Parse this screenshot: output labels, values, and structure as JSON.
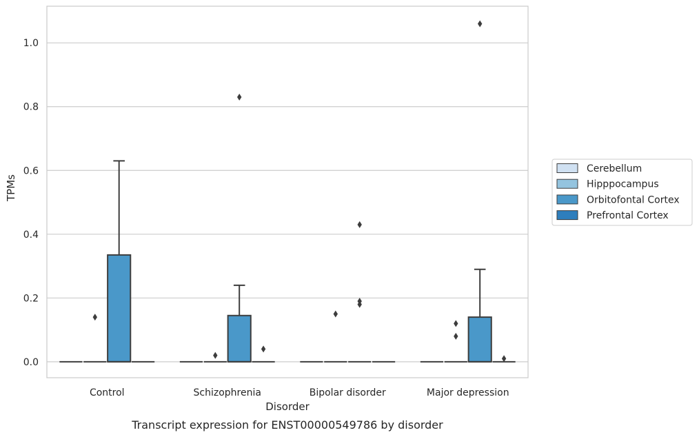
{
  "chart_data": {
    "type": "box",
    "title": "",
    "caption": "Transcript expression for ENST00000549786 by disorder",
    "xlabel": "Disorder",
    "ylabel": "TPMs",
    "ylim": [
      -0.05,
      1.115
    ],
    "yticks": [
      0.0,
      0.2,
      0.4,
      0.6,
      0.8,
      1.0
    ],
    "ytick_labels": [
      "0.0",
      "0.2",
      "0.4",
      "0.6",
      "0.8",
      "1.0"
    ],
    "grid": "horizontal",
    "legend_position": "right",
    "categories": [
      "Control",
      "Schizophrenia",
      "Bipolar disorder",
      "Major depression"
    ],
    "series": [
      {
        "name": "Cerebellum",
        "color": "#d0e1f2",
        "boxes": [
          {
            "q1": 0,
            "median": 0,
            "q3": 0,
            "whisker_low": 0,
            "whisker_high": 0,
            "outliers": []
          },
          {
            "q1": 0,
            "median": 0,
            "q3": 0,
            "whisker_low": 0,
            "whisker_high": 0,
            "outliers": []
          },
          {
            "q1": 0,
            "median": 0,
            "q3": 0,
            "whisker_low": 0,
            "whisker_high": 0,
            "outliers": []
          },
          {
            "q1": 0,
            "median": 0,
            "q3": 0,
            "whisker_low": 0,
            "whisker_high": 0,
            "outliers": []
          }
        ]
      },
      {
        "name": "Hipppocampus",
        "color": "#94c4df",
        "boxes": [
          {
            "q1": 0,
            "median": 0,
            "q3": 0,
            "whisker_low": 0,
            "whisker_high": 0,
            "outliers": [
              0.14
            ]
          },
          {
            "q1": 0,
            "median": 0,
            "q3": 0,
            "whisker_low": 0,
            "whisker_high": 0,
            "outliers": [
              0.02
            ]
          },
          {
            "q1": 0,
            "median": 0,
            "q3": 0,
            "whisker_low": 0,
            "whisker_high": 0,
            "outliers": [
              0.15
            ]
          },
          {
            "q1": 0,
            "median": 0,
            "q3": 0,
            "whisker_low": 0,
            "whisker_high": 0,
            "outliers": [
              0.08,
              0.12
            ]
          }
        ]
      },
      {
        "name": "Orbitofontal Cortex",
        "color": "#4a98c9",
        "boxes": [
          {
            "q1": 0,
            "median": 0,
            "q3": 0.335,
            "whisker_low": 0,
            "whisker_high": 0.63,
            "outliers": []
          },
          {
            "q1": 0,
            "median": 0,
            "q3": 0.145,
            "whisker_low": 0,
            "whisker_high": 0.24,
            "outliers": [
              0.83
            ]
          },
          {
            "q1": 0,
            "median": 0,
            "q3": 0,
            "whisker_low": 0,
            "whisker_high": 0,
            "outliers": [
              0.18,
              0.19,
              0.43
            ]
          },
          {
            "q1": 0,
            "median": 0,
            "q3": 0.14,
            "whisker_low": 0,
            "whisker_high": 0.29,
            "outliers": [
              1.06
            ]
          }
        ]
      },
      {
        "name": "Prefrontal Cortex",
        "color": "#2e7ebc",
        "boxes": [
          {
            "q1": 0,
            "median": 0,
            "q3": 0,
            "whisker_low": 0,
            "whisker_high": 0,
            "outliers": []
          },
          {
            "q1": 0,
            "median": 0,
            "q3": 0,
            "whisker_low": 0,
            "whisker_high": 0,
            "outliers": [
              0.04
            ]
          },
          {
            "q1": 0,
            "median": 0,
            "q3": 0,
            "whisker_low": 0,
            "whisker_high": 0,
            "outliers": []
          },
          {
            "q1": 0,
            "median": 0,
            "q3": 0,
            "whisker_low": 0,
            "whisker_high": 0,
            "outliers": [
              0.01
            ]
          }
        ]
      }
    ]
  }
}
